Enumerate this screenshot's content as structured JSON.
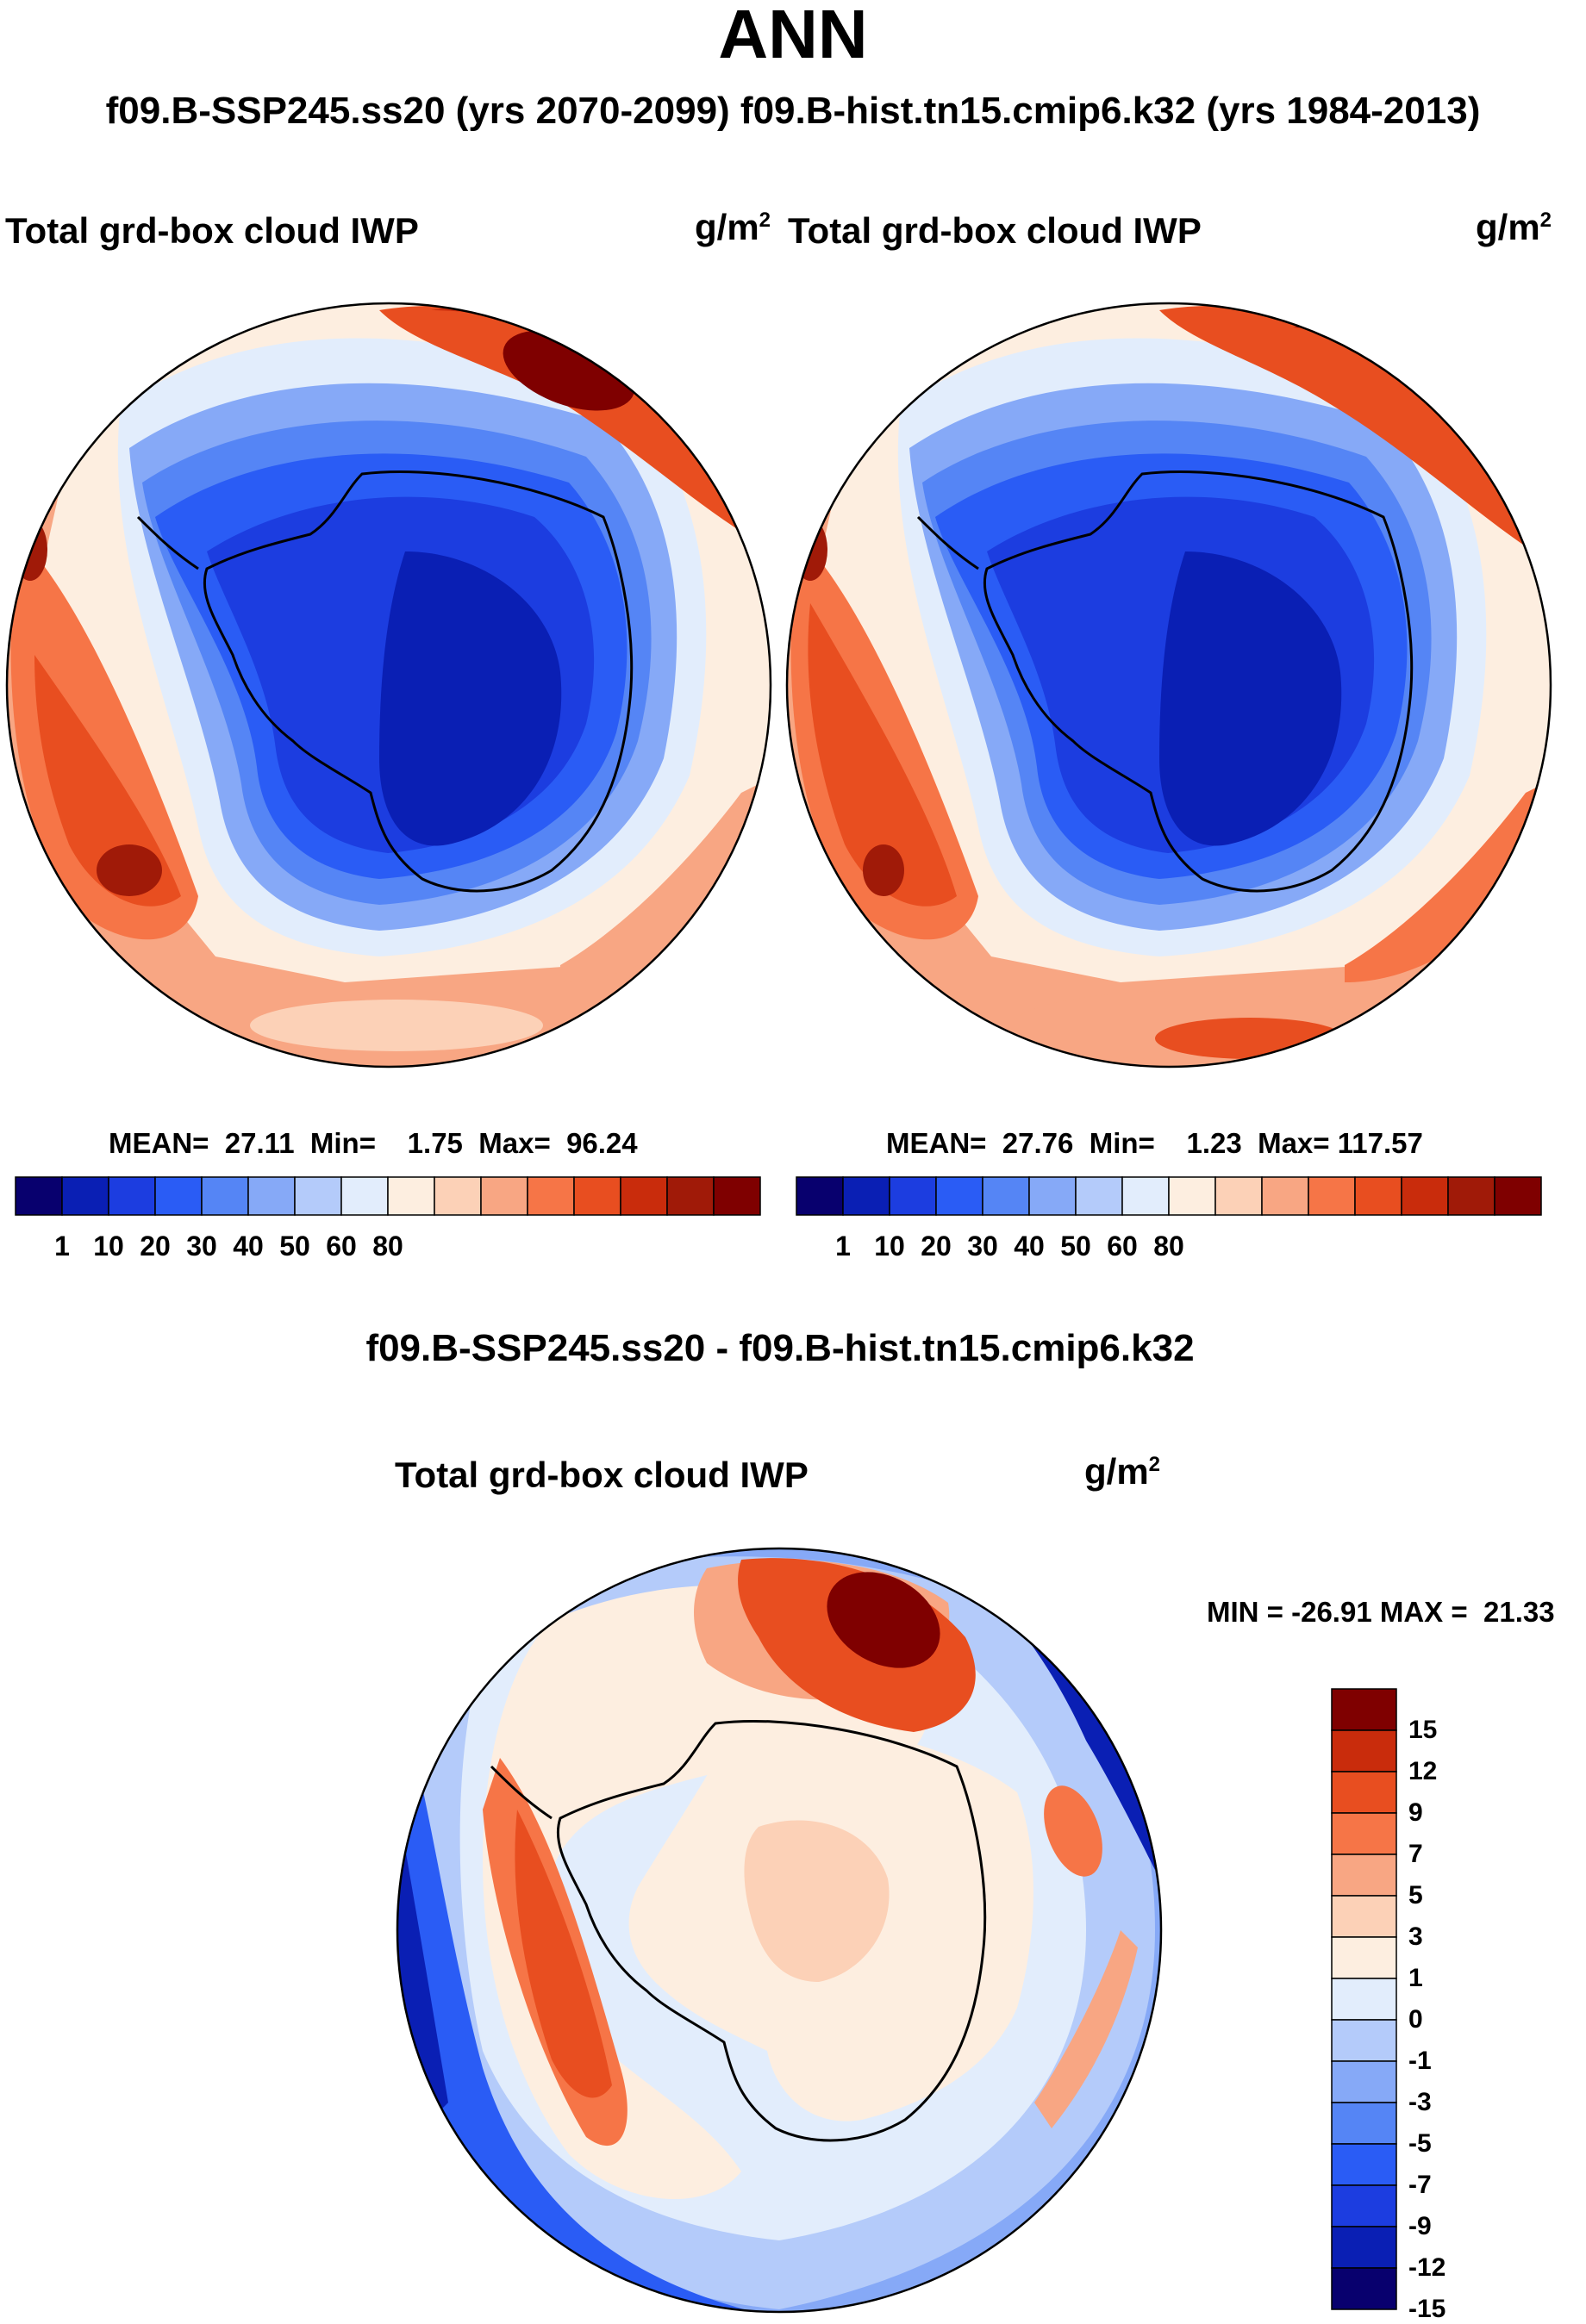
{
  "page": {
    "title": "ANN",
    "subtitle": "f09.B-SSP245.ss20 (yrs 2070-2099)  f09.B-hist.tn15.cmip6.k32 (yrs 1984-2013)",
    "difference_title": "f09.B-SSP245.ss20 - f09.B-hist.tn15.cmip6.k32"
  },
  "colors": {
    "seq": [
      "#08006e",
      "#0a1fb4",
      "#1c3de0",
      "#2a5cf5",
      "#5585f5",
      "#86a9f7",
      "#b4cbfa",
      "#e2edfc",
      "#fdeee0",
      "#fcd1b7",
      "#f8a683",
      "#f67547",
      "#e84e20",
      "#c92c0c",
      "#a01a08",
      "#7f0000"
    ],
    "diff": [
      "#08006e",
      "#0a1fb4",
      "#1c3de0",
      "#2a5cf5",
      "#5585f5",
      "#86a9f7",
      "#b4cbfa",
      "#e2edfc",
      "#fdeee0",
      "#fcd1b7",
      "#f8a683",
      "#f67547",
      "#e84e20",
      "#c92c0c",
      "#7f0000"
    ]
  },
  "chart_data": [
    {
      "type": "heatmap",
      "projection": "south-polar-stereographic",
      "title": "Total grd-box cloud IWP",
      "units": "g/m",
      "units_exp": "2",
      "stats": {
        "mean_label": "MEAN=",
        "mean": "27.11",
        "min_label": "Min=",
        "min": "1.75",
        "max_label": "Max=",
        "max": "96.24"
      },
      "colorbar": {
        "orientation": "horizontal",
        "levels": [
          "1",
          "10",
          "20",
          "30",
          "40",
          "50",
          "60",
          "80"
        ]
      }
    },
    {
      "type": "heatmap",
      "projection": "south-polar-stereographic",
      "title": "Total grd-box cloud IWP",
      "units": "g/m",
      "units_exp": "2",
      "stats": {
        "mean_label": "MEAN=",
        "mean": "27.76",
        "min_label": "Min=",
        "min": "1.23",
        "max_label": "Max=",
        "max": "117.57"
      },
      "colorbar": {
        "orientation": "horizontal",
        "levels": [
          "1",
          "10",
          "20",
          "30",
          "40",
          "50",
          "60",
          "80"
        ]
      }
    },
    {
      "type": "heatmap",
      "projection": "south-polar-stereographic",
      "title": "Total grd-box cloud IWP",
      "units": "g/m",
      "units_exp": "2",
      "stats": {
        "min_label": "MIN =",
        "min": "-26.91",
        "max_label": "MAX =",
        "max": "21.33"
      },
      "colorbar": {
        "orientation": "vertical",
        "levels": [
          "15",
          "12",
          "9",
          "7",
          "5",
          "3",
          "1",
          "0",
          "-1",
          "-3",
          "-5",
          "-7",
          "-9",
          "-12",
          "-15"
        ]
      }
    }
  ]
}
